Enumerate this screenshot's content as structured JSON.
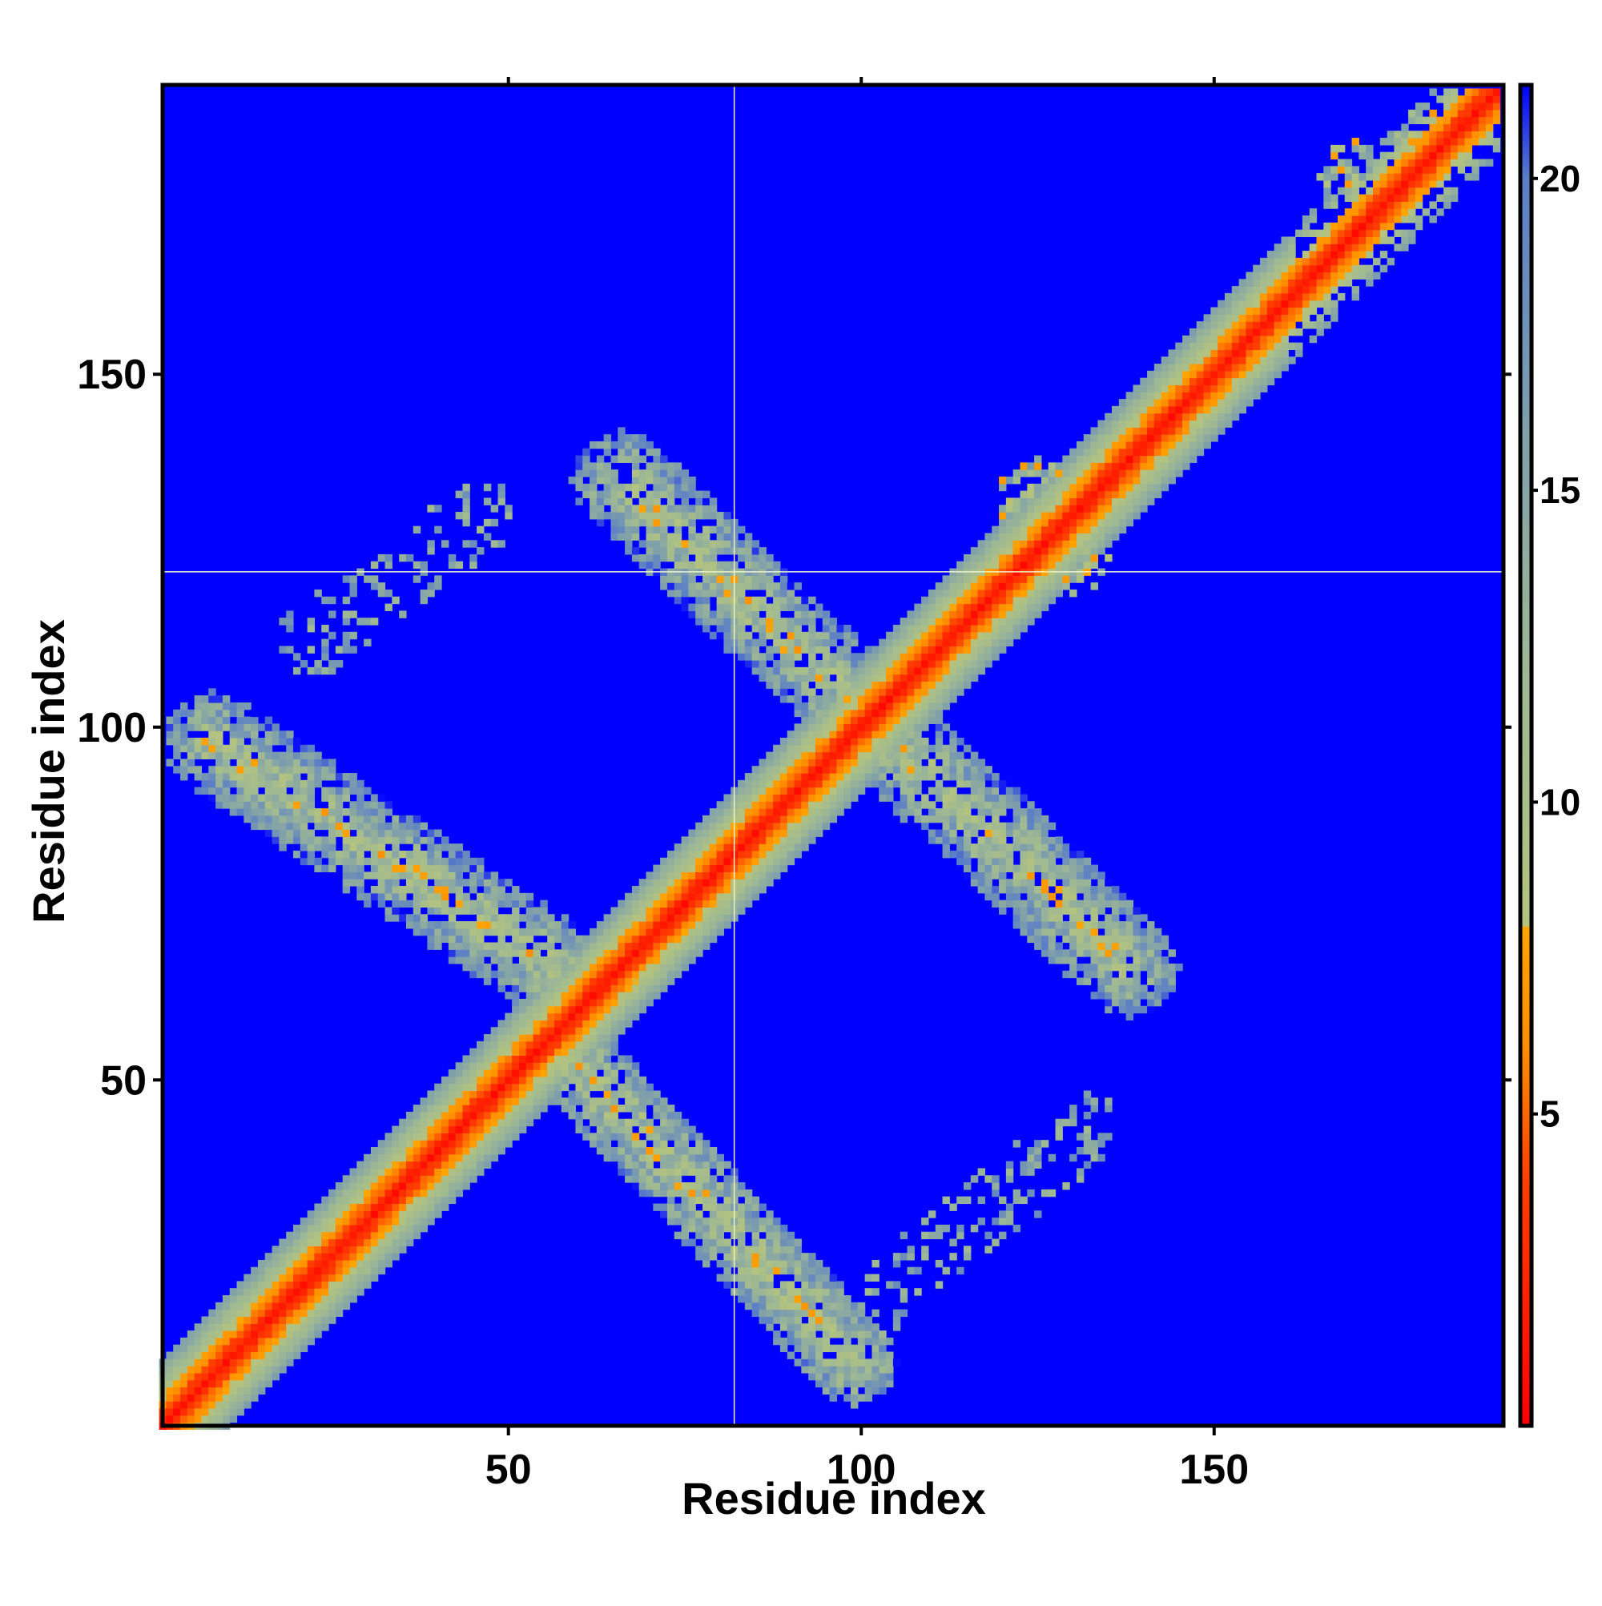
{
  "chart_data": {
    "type": "heatmap",
    "title": "",
    "xlabel": "Residue index",
    "ylabel": "Residue index",
    "n_residues": 190,
    "xlim": [
      1,
      191
    ],
    "ylim": [
      1,
      191
    ],
    "x_ticks": [
      50,
      100,
      150
    ],
    "y_ticks": [
      50,
      100,
      150
    ],
    "colorbar": {
      "range": [
        0,
        21.5
      ],
      "ticks": [
        5,
        10,
        15,
        20
      ],
      "color_stops": [
        {
          "value": 0,
          "color": "#ff0000"
        },
        {
          "value": 4,
          "color": "#ff4000"
        },
        {
          "value": 6,
          "color": "#ff8c00"
        },
        {
          "value": 8,
          "color": "#ffa500"
        },
        {
          "value": 8.01,
          "color": "#b4c37e"
        },
        {
          "value": 12,
          "color": "#9eb894"
        },
        {
          "value": 16,
          "color": "#7f9fab"
        },
        {
          "value": 20,
          "color": "#5b7fc6"
        },
        {
          "value": 21.5,
          "color": "#0000ff"
        }
      ]
    },
    "background_value": 21.5,
    "background_color": "#0000ff",
    "crosshair": {
      "x": 82,
      "y": 122,
      "color": "#f0f0c8"
    },
    "features": {
      "diagonal": {
        "description": "self-contact band",
        "min_value": 0.5,
        "half_width_residues": 9
      },
      "antiparallel_bands": [
        {
          "p1": [
            8,
            98
          ],
          "p2": [
            56,
            66
          ],
          "width": 7,
          "peak_value": 6
        },
        {
          "p1": [
            57,
            55
          ],
          "p2": [
            99,
            10
          ],
          "width": 6,
          "peak_value": 6
        },
        {
          "p1": [
            66,
            135
          ],
          "p2": [
            138,
            66
          ],
          "width": 7,
          "peak_value": 6
        }
      ],
      "sparse_arms": [
        {
          "p1": [
            22,
            112
          ],
          "p2": [
            46,
            130
          ],
          "width": 5
        },
        {
          "p1": [
            101,
            18
          ],
          "p2": [
            132,
            43
          ],
          "width": 5
        }
      ],
      "patches": [
        {
          "x": 125,
          "y": 132,
          "r": 6
        },
        {
          "x": 130,
          "y": 124,
          "r": 5
        },
        {
          "x": 170,
          "y": 178,
          "r": 5
        },
        {
          "x": 180,
          "y": 184,
          "r": 4
        },
        {
          "x": 27,
          "y": 25,
          "r": 4
        }
      ]
    }
  }
}
